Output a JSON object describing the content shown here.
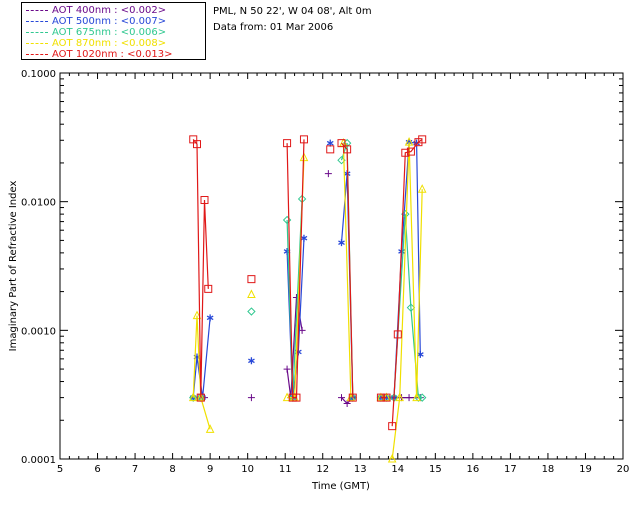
{
  "site": {
    "location": "PML, N 50 22', W 04 08', Alt 0m",
    "date": "Data from: 01 Mar 2006"
  },
  "chart_data": {
    "type": "line",
    "title": "",
    "xlabel": "Time (GMT)",
    "ylabel": "Imaginary Part of Refractive Index",
    "xlim": [
      5,
      20
    ],
    "ylim": [
      0.0001,
      0.1
    ],
    "yscale": "log",
    "xticks": [
      "5",
      "6",
      "7",
      "8",
      "9",
      "10",
      "11",
      "12",
      "13",
      "14",
      "15",
      "16",
      "17",
      "18",
      "19",
      "20"
    ],
    "yticks": [
      "0.0001",
      "0.0010",
      "0.0100",
      "0.1000"
    ],
    "grid": false,
    "legend_position": "top-left, outside plot",
    "series": [
      {
        "name": "AOT  400nm : <0.002>",
        "color": "#6a0a8a",
        "marker": "plus",
        "segments": [
          [
            [
              8.55,
              0.0003
            ],
            [
              8.7,
              0.0003
            ],
            [
              8.85,
              0.0003
            ]
          ],
          [
            [
              10.1,
              0.0003
            ]
          ],
          [
            [
              11.05,
              0.0005
            ],
            [
              11.15,
              0.0003
            ],
            [
              11.3,
              0.0018
            ],
            [
              11.45,
              0.001
            ]
          ],
          [
            [
              12.15,
              0.0165
            ]
          ],
          [
            [
              12.5,
              0.0003
            ],
            [
              12.65,
              0.00027
            ],
            [
              12.8,
              0.0003
            ]
          ],
          [
            [
              13.55,
              0.0003
            ],
            [
              13.7,
              0.0003
            ]
          ],
          [
            [
              13.9,
              0.0003
            ],
            [
              14.1,
              0.0003
            ],
            [
              14.3,
              0.0003
            ],
            [
              14.6,
              0.0003
            ]
          ]
        ]
      },
      {
        "name": "AOT  500nm : <0.007>",
        "color": "#2848d8",
        "marker": "asterisk",
        "segments": [
          [
            [
              8.55,
              0.0003
            ],
            [
              8.65,
              0.00062
            ],
            [
              8.8,
              0.0003
            ],
            [
              9.0,
              0.00125
            ]
          ],
          [
            [
              10.1,
              0.00058
            ]
          ],
          [
            [
              11.05,
              0.0041
            ],
            [
              11.2,
              0.0003
            ],
            [
              11.35,
              0.00068
            ],
            [
              11.5,
              0.0052
            ]
          ],
          [
            [
              12.2,
              0.0285
            ]
          ],
          [
            [
              12.5,
              0.0048
            ],
            [
              12.65,
              0.0165
            ],
            [
              12.8,
              0.0003
            ]
          ],
          [
            [
              13.55,
              0.0003
            ],
            [
              13.7,
              0.0003
            ]
          ],
          [
            [
              13.9,
              0.0003
            ],
            [
              14.1,
              0.0041
            ],
            [
              14.3,
              0.029
            ],
            [
              14.5,
              0.0285
            ],
            [
              14.6,
              0.00065
            ]
          ]
        ]
      },
      {
        "name": "AOT  675nm : <0.006>",
        "color": "#30c890",
        "marker": "diamond",
        "segments": [
          [
            [
              8.55,
              0.0003
            ],
            [
              8.75,
              0.0003
            ]
          ],
          [
            [
              10.1,
              0.0014
            ]
          ],
          [
            [
              11.05,
              0.0072
            ],
            [
              11.2,
              0.0003
            ],
            [
              11.45,
              0.0105
            ]
          ],
          [
            [
              12.5,
              0.021
            ],
            [
              12.65,
              0.0285
            ],
            [
              12.8,
              0.0003
            ]
          ],
          [
            [
              13.55,
              0.0003
            ],
            [
              13.7,
              0.0003
            ]
          ],
          [
            [
              13.9,
              0.0003
            ],
            [
              14.2,
              0.008
            ],
            [
              14.35,
              0.0015
            ],
            [
              14.55,
              0.0003
            ],
            [
              14.65,
              0.0003
            ]
          ]
        ]
      },
      {
        "name": "AOT  870nm : <0.008>",
        "color": "#f0e000",
        "marker": "triangle",
        "segments": [
          [
            [
              8.55,
              0.0003
            ],
            [
              8.65,
              0.0013
            ],
            [
              8.75,
              0.0003
            ],
            [
              9.0,
              0.00017
            ]
          ],
          [
            [
              10.1,
              0.0019
            ]
          ],
          [
            [
              11.05,
              0.0003
            ],
            [
              11.25,
              0.0003
            ],
            [
              11.5,
              0.022
            ]
          ],
          [
            [
              12.55,
              0.0285
            ],
            [
              12.75,
              0.0003
            ]
          ],
          [
            [
              13.55,
              0.0003
            ],
            [
              13.7,
              0.0003
            ]
          ],
          [
            [
              13.85,
              0.0001
            ],
            [
              14.05,
              0.0003
            ],
            [
              14.3,
              0.029
            ],
            [
              14.5,
              0.0003
            ],
            [
              14.65,
              0.0125
            ]
          ]
        ]
      },
      {
        "name": "AOT 1020nm : <0.013>",
        "color": "#e01818",
        "marker": "square",
        "segments": [
          [
            [
              8.55,
              0.0305
            ],
            [
              8.65,
              0.028
            ],
            [
              8.75,
              0.0003
            ],
            [
              8.85,
              0.0103
            ],
            [
              8.95,
              0.0021
            ]
          ],
          [
            [
              10.1,
              0.0025
            ]
          ],
          [
            [
              11.05,
              0.0285
            ],
            [
              11.2,
              0.0003
            ],
            [
              11.3,
              0.0003
            ],
            [
              11.5,
              0.0305
            ]
          ],
          [
            [
              12.2,
              0.0255
            ]
          ],
          [
            [
              12.5,
              0.0285
            ],
            [
              12.65,
              0.0255
            ],
            [
              12.8,
              0.0003
            ]
          ],
          [
            [
              13.55,
              0.0003
            ],
            [
              13.7,
              0.0003
            ]
          ],
          [
            [
              13.85,
              0.00018
            ],
            [
              14.0,
              0.00093
            ],
            [
              14.2,
              0.024
            ],
            [
              14.35,
              0.0245
            ],
            [
              14.55,
              0.029
            ],
            [
              14.65,
              0.0305
            ]
          ]
        ]
      }
    ]
  }
}
